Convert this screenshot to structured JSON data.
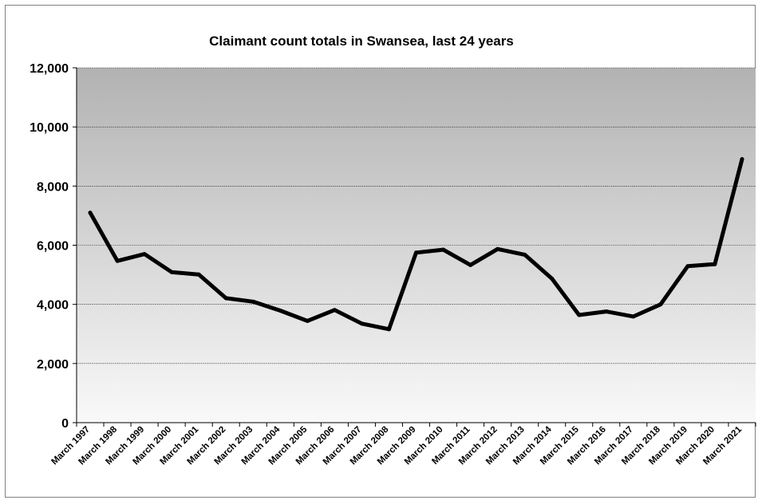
{
  "chart_data": {
    "type": "line",
    "title": "Claimant count totals in Swansea, last 24 years",
    "xlabel": "",
    "ylabel": "",
    "ylim": [
      0,
      12000
    ],
    "yticks": [
      "0",
      "2,000",
      "4,000",
      "6,000",
      "8,000",
      "10,000",
      "12,000"
    ],
    "grid": true,
    "legend": "none",
    "categories": [
      "March 1997",
      "March 1998",
      "March 1999",
      "March 2000",
      "March 2001",
      "March 2002",
      "March 2003",
      "March 2004",
      "March 2005",
      "March 2006",
      "March 2007",
      "March 2008",
      "March 2009",
      "March 2010",
      "March 2011",
      "March 2012",
      "March 2013",
      "March 2014",
      "March 2015",
      "March 2016",
      "March 2017",
      "March 2018",
      "March 2019",
      "March 2020",
      "March 2021"
    ],
    "series": [
      {
        "values": [
          7100,
          5470,
          5700,
          5090,
          5010,
          4210,
          4090,
          3790,
          3440,
          3810,
          3350,
          3160,
          5750,
          5850,
          5330,
          5870,
          5680,
          4870,
          3640,
          3760,
          3590,
          4000,
          5290,
          5360,
          8910
        ]
      }
    ],
    "colors": {
      "line": "#000000",
      "plot_bg_top": "#b2b2b2",
      "plot_bg_bottom": "#f9f9f9",
      "grid": "#000000"
    }
  }
}
